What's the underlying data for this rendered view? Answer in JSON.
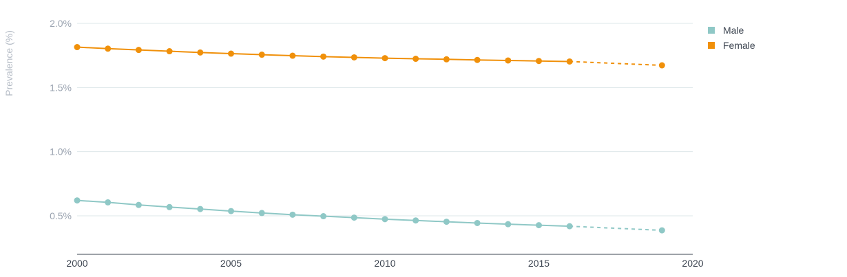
{
  "chart_data": {
    "type": "line",
    "ylabel": "Prevalence (%)",
    "xlabel": "",
    "xlim": [
      2000,
      2020
    ],
    "ylim": [
      0.2,
      2.0
    ],
    "x_ticks": [
      2000,
      2005,
      2010,
      2015,
      2020
    ],
    "y_ticks": [
      0.5,
      1.0,
      1.5,
      2.0
    ],
    "y_tick_labels": [
      "0.5%",
      "1.0%",
      "1.5%",
      "2.0%"
    ],
    "x_tick_labels": [
      "2000",
      "2005",
      "2010",
      "2015",
      "2020"
    ],
    "grid": "horizontal",
    "legend_position": "top-right",
    "x": [
      2000,
      2001,
      2002,
      2003,
      2004,
      2005,
      2006,
      2007,
      2008,
      2009,
      2010,
      2011,
      2012,
      2013,
      2014,
      2015,
      2016
    ],
    "projection_x": 2019,
    "series": [
      {
        "name": "Male",
        "color": "#8fc8c6",
        "values": [
          0.62,
          0.605,
          0.585,
          0.568,
          0.553,
          0.537,
          0.522,
          0.509,
          0.497,
          0.486,
          0.474,
          0.464,
          0.454,
          0.444,
          0.435,
          0.427,
          0.419
        ],
        "projection_value": 0.387
      },
      {
        "name": "Female",
        "color": "#f0900a",
        "values": [
          1.815,
          1.803,
          1.793,
          1.783,
          1.773,
          1.764,
          1.756,
          1.748,
          1.741,
          1.735,
          1.729,
          1.724,
          1.72,
          1.715,
          1.711,
          1.707,
          1.703
        ],
        "projection_value": 1.673
      }
    ]
  },
  "legend": {
    "items": [
      {
        "label": "Male",
        "color": "#8fc8c6"
      },
      {
        "label": "Female",
        "color": "#f0900a"
      }
    ]
  }
}
